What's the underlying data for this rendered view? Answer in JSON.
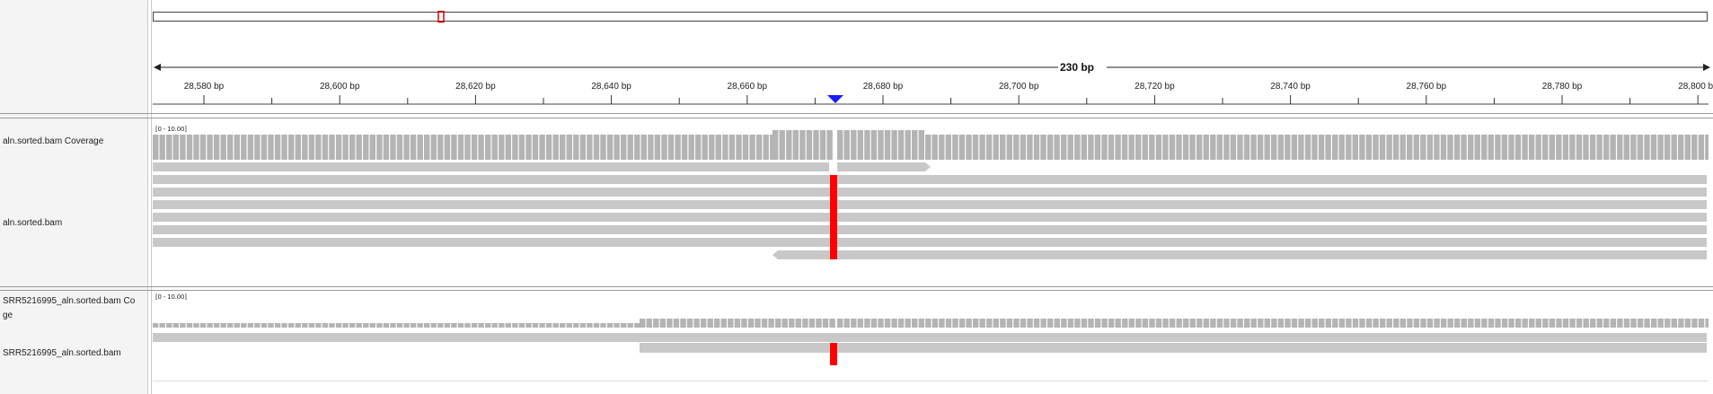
{
  "ruler": {
    "span_label": "230 bp",
    "ticks": [
      {
        "label": "28,580 bp",
        "major": true
      },
      {
        "label": "",
        "major": false
      },
      {
        "label": "28,600 bp",
        "major": true
      },
      {
        "label": "",
        "major": false
      },
      {
        "label": "28,620 bp",
        "major": true
      },
      {
        "label": "",
        "major": false
      },
      {
        "label": "28,640 bp",
        "major": true
      },
      {
        "label": "",
        "major": false
      },
      {
        "label": "28,660 bp",
        "major": true
      },
      {
        "label": "",
        "major": false
      },
      {
        "label": "28,680 bp",
        "major": true
      },
      {
        "label": "",
        "major": false
      },
      {
        "label": "28,700 bp",
        "major": true
      },
      {
        "label": "",
        "major": false
      },
      {
        "label": "28,720 bp",
        "major": true
      },
      {
        "label": "",
        "major": false
      },
      {
        "label": "28,740 bp",
        "major": true
      },
      {
        "label": "",
        "major": false
      },
      {
        "label": "28,760 bp",
        "major": true
      },
      {
        "label": "",
        "major": false
      },
      {
        "label": "28,780 bp",
        "major": true
      },
      {
        "label": "",
        "major": false
      },
      {
        "label": "28,800 bp",
        "major": true
      }
    ]
  },
  "colors": {
    "coverage": "#b4b4b4",
    "read": "#c8c8c8",
    "mismatch": "#ff0000",
    "center_marker": "#1a1aff",
    "ideogram_box": "#dd0000"
  },
  "tracks": [
    {
      "id": "cov1",
      "label": "aln.sorted.bam Coverage",
      "range": "[0 - 10.00]"
    },
    {
      "id": "reads1",
      "label": "aln.sorted.bam"
    },
    {
      "id": "cov2",
      "label_line1": "SRR5216995_aln.sorted.bam Co",
      "label_line2": "ge",
      "range": "[0 - 10.00]"
    },
    {
      "id": "reads2",
      "label": "SRR5216995_aln.sorted.bam"
    }
  ]
}
